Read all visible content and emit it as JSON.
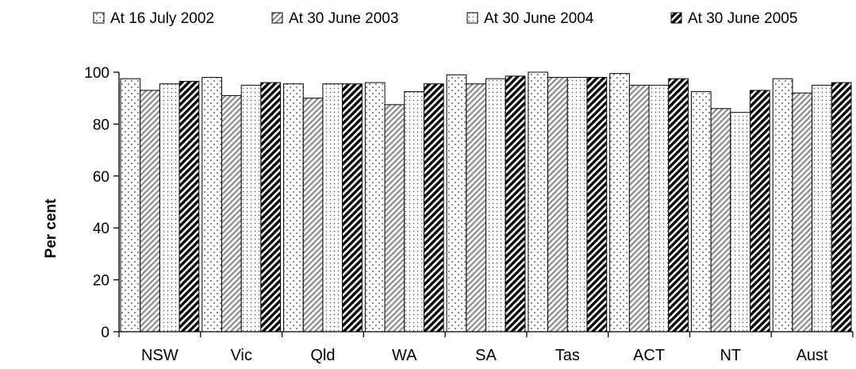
{
  "chart_data": {
    "type": "bar",
    "categories": [
      "NSW",
      "Vic",
      "Qld",
      "WA",
      "SA",
      "Tas",
      "ACT",
      "NT",
      "Aust"
    ],
    "series": [
      {
        "name": "At 16 July 2002",
        "values": [
          97.5,
          98.0,
          95.5,
          96.0,
          99.0,
          100.0,
          99.5,
          92.5,
          97.5
        ],
        "pattern": "dots-wide"
      },
      {
        "name": "At 30 June 2003",
        "values": [
          93.0,
          91.0,
          90.0,
          87.5,
          95.5,
          98.0,
          95.0,
          86.0,
          92.0
        ],
        "pattern": "diagonal-light"
      },
      {
        "name": "At 30 June 2004",
        "values": [
          95.5,
          95.0,
          95.5,
          92.5,
          97.5,
          98.0,
          95.0,
          84.5,
          95.0
        ],
        "pattern": "dots-fine"
      },
      {
        "name": "At 30 June 2005",
        "values": [
          96.5,
          96.0,
          95.5,
          95.5,
          98.5,
          98.0,
          97.5,
          93.0,
          96.0
        ],
        "pattern": "diagonal-dark"
      }
    ],
    "ylabel": "Per cent",
    "xlabel": "",
    "title": "",
    "ylim": [
      0,
      100
    ],
    "yticks": [
      0,
      20,
      40,
      60,
      80,
      100
    ],
    "grid": false,
    "legend_position": "top"
  }
}
